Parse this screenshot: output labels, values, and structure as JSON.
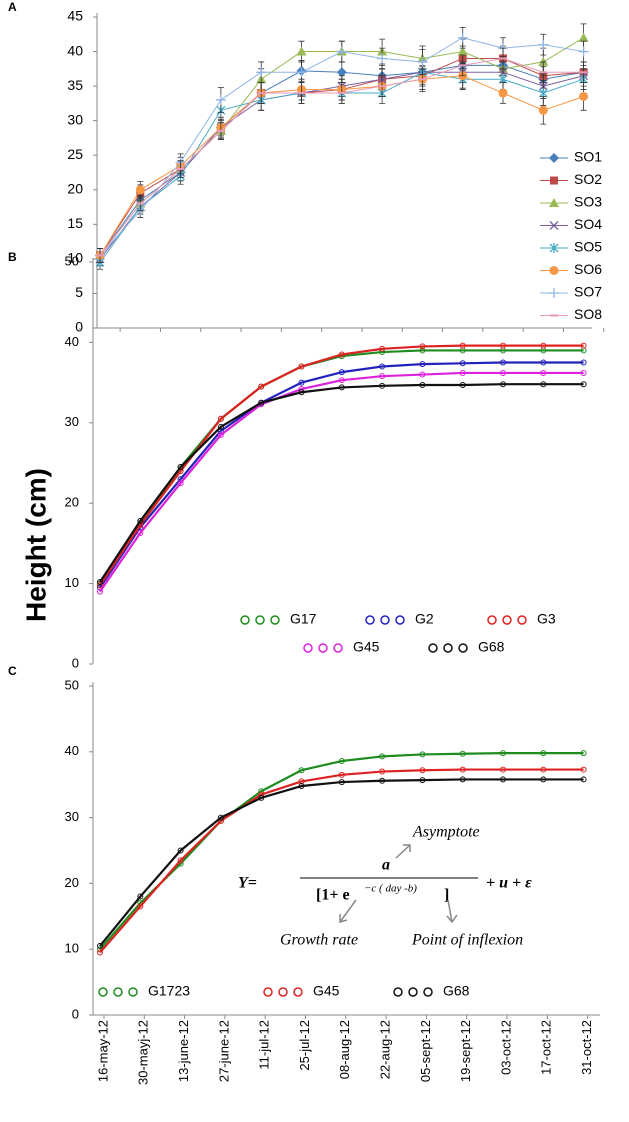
{
  "chart_data": [
    {
      "type": "line",
      "panel_label": "A",
      "ylim": [
        0,
        45
      ],
      "yticks": [
        0,
        5,
        10,
        15,
        20,
        25,
        30,
        35,
        40,
        45
      ],
      "legend": "right",
      "series": [
        {
          "name": "SO1",
          "color": "#4a7ebb",
          "marker": "diamond",
          "values": [
            10.5,
            18.5,
            22.5,
            29,
            34,
            37.2,
            37,
            36.5,
            37,
            38,
            38,
            36,
            37
          ],
          "errors": [
            1,
            1.2,
            1.2,
            1.5,
            1.5,
            1.5,
            1.5,
            1.5,
            1.8,
            1.8,
            1.5,
            1.8,
            1.5
          ]
        },
        {
          "name": "SO2",
          "color": "#be4b48",
          "marker": "square",
          "values": [
            10.5,
            19.5,
            23,
            28.5,
            34,
            34,
            34.5,
            36,
            36.5,
            39,
            39,
            36.5,
            37
          ],
          "errors": [
            1,
            1.2,
            1.2,
            1.2,
            1.5,
            1.5,
            1.5,
            1.5,
            1.5,
            1.8,
            1.8,
            1.8,
            1.5
          ]
        },
        {
          "name": "SO3",
          "color": "#98b954",
          "marker": "triangle",
          "values": [
            10.5,
            18,
            23,
            28.5,
            36,
            40,
            40,
            40,
            39,
            40,
            37.5,
            38.5,
            42
          ],
          "errors": [
            1,
            1.2,
            1.2,
            1.2,
            1.5,
            1.5,
            1.5,
            1.8,
            1.8,
            1.8,
            1.8,
            2,
            2
          ]
        },
        {
          "name": "SO4",
          "color": "#7d60a0",
          "marker": "x",
          "values": [
            10,
            17.5,
            22.5,
            29,
            33,
            34,
            35,
            36,
            37,
            37,
            37,
            35,
            36.5
          ],
          "errors": [
            1,
            1,
            1.2,
            1.2,
            1.5,
            1.5,
            1.5,
            1.5,
            1.5,
            1.5,
            1.5,
            1.8,
            1.5
          ]
        },
        {
          "name": "SO5",
          "color": "#46aac5",
          "marker": "star",
          "values": [
            9.5,
            17.5,
            22,
            31.5,
            33,
            34,
            34,
            34,
            37,
            36,
            36,
            34,
            36
          ],
          "errors": [
            1,
            1,
            1.2,
            1.5,
            1.5,
            1.5,
            1.5,
            1.5,
            1.5,
            1.5,
            1.5,
            1.8,
            1.5
          ]
        },
        {
          "name": "SO6",
          "color": "#f79646",
          "marker": "circle",
          "values": [
            10.5,
            20,
            23.5,
            29,
            34,
            34.5,
            34.5,
            35,
            36,
            36.5,
            34,
            31.5,
            33.5
          ],
          "errors": [
            1,
            1.2,
            1.2,
            1.2,
            1.5,
            1.5,
            1.5,
            1.5,
            1.8,
            1.8,
            1.5,
            2,
            2
          ]
        },
        {
          "name": "SO7",
          "color": "#8eb4e3",
          "marker": "plus",
          "values": [
            10.5,
            17,
            24,
            33,
            37,
            37,
            40,
            39,
            38.5,
            42,
            40.5,
            41,
            40
          ],
          "errors": [
            1,
            1,
            1.2,
            1.8,
            1.5,
            1.5,
            1.5,
            1.5,
            1.8,
            1.5,
            1.5,
            1.5,
            1.5
          ]
        },
        {
          "name": "SO8",
          "color": "#e79ab9",
          "marker": "dash",
          "values": [
            10.5,
            18,
            23,
            28.5,
            34,
            34,
            34,
            35,
            36,
            38,
            39,
            37,
            37
          ],
          "errors": [
            1,
            1,
            1.2,
            1.2,
            1.5,
            1.5,
            1.5,
            1.5,
            1.5,
            1.5,
            1.5,
            1.5,
            1.5
          ]
        }
      ]
    },
    {
      "type": "curve",
      "panel_label": "B",
      "y_label": "Height (cm)",
      "ylim": [
        0,
        50
      ],
      "yticks": [
        0,
        10,
        20,
        30,
        40,
        50
      ],
      "legend": "lower center",
      "series": [
        {
          "name": "G17",
          "color": "#1e8c1e",
          "values": [
            10,
            17.5,
            24.5,
            30.5,
            34.5,
            37,
            38.3,
            38.8,
            39,
            39,
            39,
            39,
            39
          ]
        },
        {
          "name": "G2",
          "color": "#2222bb",
          "values": [
            9.5,
            17,
            23,
            29,
            32.5,
            35,
            36.3,
            37,
            37.3,
            37.4,
            37.5,
            37.5,
            37.5
          ]
        },
        {
          "name": "G3",
          "color": "#dd2222",
          "values": [
            9.8,
            17.3,
            24,
            30.5,
            34.5,
            37,
            38.5,
            39.2,
            39.5,
            39.6,
            39.6,
            39.6,
            39.6
          ]
        },
        {
          "name": "G45",
          "color": "#dd22dd",
          "values": [
            9,
            16.3,
            22.5,
            28.5,
            32.3,
            34.2,
            35.3,
            35.8,
            36,
            36.2,
            36.2,
            36.2,
            36.2
          ]
        },
        {
          "name": "G68",
          "color": "#111111",
          "values": [
            10.2,
            17.8,
            24.5,
            29.5,
            32.5,
            33.8,
            34.4,
            34.6,
            34.7,
            34.7,
            34.8,
            34.8,
            34.8
          ]
        }
      ]
    },
    {
      "type": "curve",
      "panel_label": "C",
      "categories": [
        "16-may-12",
        "30-mayj-12",
        "13-june-12",
        "27-june-12",
        "11-jul-12",
        "25-jul-12",
        "08-aug-12",
        "22-aug-12",
        "05-sept-12",
        "19-sept-12",
        "03-oct-12",
        "17-oct-12",
        "31-oct-12"
      ],
      "ylim": [
        0,
        50
      ],
      "yticks": [
        0,
        10,
        20,
        30,
        40,
        50
      ],
      "legend": "lower left",
      "annotations": [
        "Asymptote",
        "Y=",
        "a",
        "[1+ e",
        "−c ( day -b)",
        "]",
        "+ u + ε",
        "Growth rate",
        "Point  of inflexion"
      ],
      "series": [
        {
          "name": "G1723",
          "color": "#1e8c1e",
          "values": [
            10,
            17,
            23,
            29.5,
            34,
            37.2,
            38.6,
            39.3,
            39.6,
            39.7,
            39.8,
            39.8,
            39.8
          ]
        },
        {
          "name": "G45",
          "color": "#dd2222",
          "values": [
            9.5,
            16.5,
            23.5,
            29.5,
            33.5,
            35.5,
            36.5,
            37,
            37.2,
            37.3,
            37.3,
            37.3,
            37.3
          ]
        },
        {
          "name": "G68",
          "color": "#111111",
          "values": [
            10.5,
            18,
            25,
            30,
            33,
            34.8,
            35.4,
            35.6,
            35.7,
            35.8,
            35.8,
            35.8,
            35.8
          ]
        }
      ]
    }
  ]
}
